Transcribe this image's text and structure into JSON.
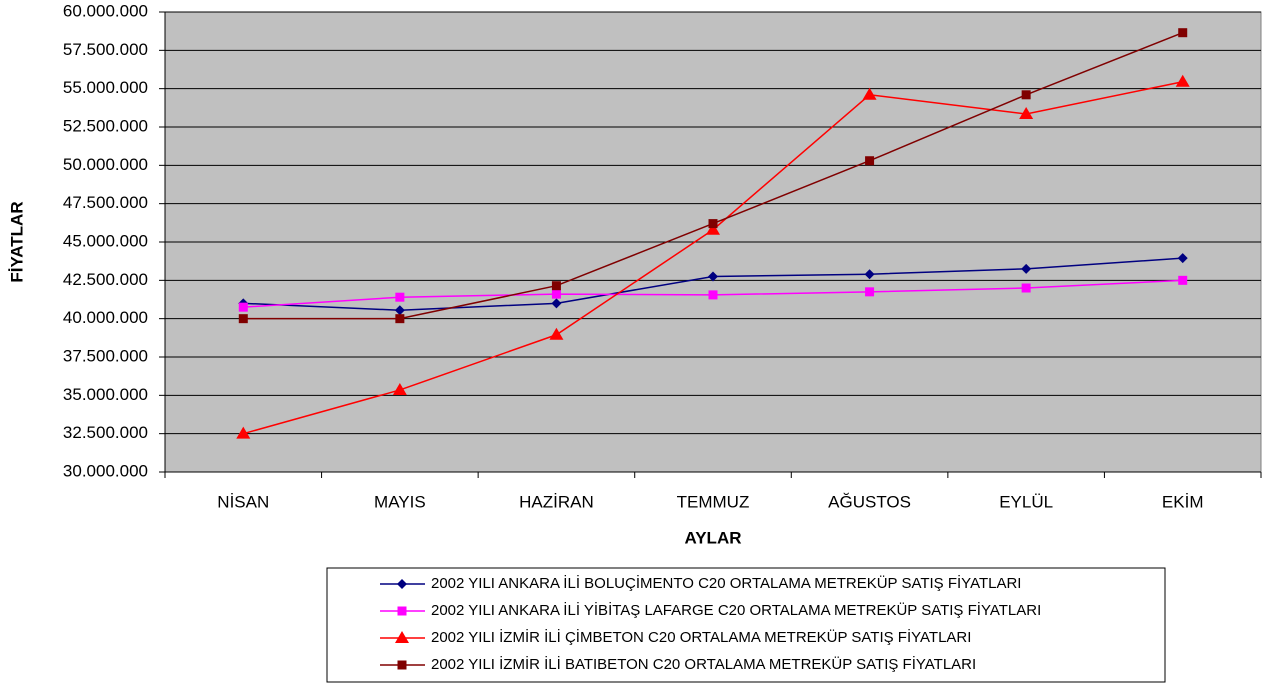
{
  "chart_data": {
    "type": "line",
    "x_label": "AYLAR",
    "y_label": "FİYATLAR",
    "categories": [
      "NİSAN",
      "MAYIS",
      "HAZİRAN",
      "TEMMUZ",
      "AĞUSTOS",
      "EYLÜL",
      "EKİM"
    ],
    "ylim": [
      30000000,
      60000000
    ],
    "yticks": [
      {
        "value": 30000000,
        "label": "30.000.000"
      },
      {
        "value": 32500000,
        "label": "32.500.000"
      },
      {
        "value": 35000000,
        "label": "35.000.000"
      },
      {
        "value": 37500000,
        "label": "37.500.000"
      },
      {
        "value": 40000000,
        "label": "40.000.000"
      },
      {
        "value": 42500000,
        "label": "42.500.000"
      },
      {
        "value": 45000000,
        "label": "45.000.000"
      },
      {
        "value": 47500000,
        "label": "47.500.000"
      },
      {
        "value": 50000000,
        "label": "50.000.000"
      },
      {
        "value": 52500000,
        "label": "52.500.000"
      },
      {
        "value": 55000000,
        "label": "55.000.000"
      },
      {
        "value": 57500000,
        "label": "57.500.000"
      },
      {
        "value": 60000000,
        "label": "60.000.000"
      }
    ],
    "grid": true,
    "legend": "bottom",
    "series": [
      {
        "name": "2002 YILI ANKARA İLİ BOLUÇİMENTO C20 ORTALAMA METREKÜP SATIŞ FİYATLARI",
        "color": "#000080",
        "marker": "diamond",
        "values": [
          41000000,
          40550000,
          41000000,
          42750000,
          42900000,
          43250000,
          43950000
        ]
      },
      {
        "name": "2002 YILI ANKARA İLİ YİBİTAŞ LAFARGE C20 ORTALAMA METREKÜP SATIŞ FİYATLARI",
        "color": "#ff00ff",
        "marker": "square",
        "values": [
          40750000,
          41400000,
          41600000,
          41550000,
          41750000,
          42000000,
          42500000
        ]
      },
      {
        "name": "2002 YILI İZMİR İLİ ÇİMBETON C20 ORTALAMA METREKÜP SATIŞ FİYATLARI",
        "color": "#ff0000",
        "marker": "triangle",
        "values": [
          32500000,
          35350000,
          38950000,
          45800000,
          54600000,
          53350000,
          55450000
        ]
      },
      {
        "name": "2002 YILI İZMİR İLİ BATIBETON C20 ORTALAMA METREKÜP SATIŞ FİYATLARI",
        "color": "#800000",
        "marker": "square",
        "values": [
          40000000,
          40000000,
          42150000,
          46200000,
          50300000,
          54600000,
          58650000
        ]
      }
    ]
  }
}
